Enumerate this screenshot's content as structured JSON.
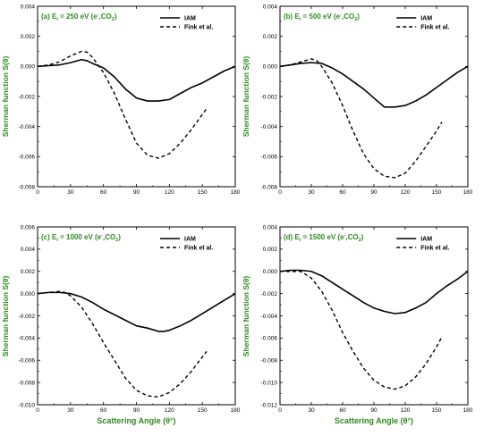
{
  "figure": {
    "ylabel": "Sherman function S(θ)",
    "xlabel": "Scattering Angle (θ°)"
  },
  "chart_data": [
    {
      "type": "line",
      "title": "(a) Ei = 250 eV (e⁻,CO₂)",
      "title_parts": {
        "pre": "(a) E",
        "sub": "i",
        "mid": " = 250 eV (e",
        "sup": "-",
        "post1": ",CO",
        "sub2": "2",
        "post2": ")"
      },
      "ylabel": "Sherman function S(θ)",
      "xlabel": "",
      "xlim": [
        0,
        180
      ],
      "ylim": [
        -0.008,
        0.004
      ],
      "xticks": [
        0,
        30,
        60,
        90,
        120,
        150,
        180
      ],
      "yticks": [
        "0.004",
        "0.002",
        "0.000",
        "-0.002",
        "-0.004",
        "-0.006",
        "-0.008"
      ],
      "legend": "top-right",
      "series": [
        {
          "name": "IAM",
          "dash": "solid",
          "points": [
            [
              0,
              0.0
            ],
            [
              10,
              5e-05
            ],
            [
              20,
              0.0001
            ],
            [
              30,
              0.00025
            ],
            [
              40,
              0.00045
            ],
            [
              45,
              0.00038
            ],
            [
              50,
              0.0002
            ],
            [
              60,
              -0.0001
            ],
            [
              70,
              -0.0007
            ],
            [
              80,
              -0.0015
            ],
            [
              90,
              -0.0021
            ],
            [
              100,
              -0.0023
            ],
            [
              110,
              -0.0023
            ],
            [
              120,
              -0.0022
            ],
            [
              130,
              -0.0018
            ],
            [
              140,
              -0.0014
            ],
            [
              150,
              -0.0011
            ],
            [
              160,
              -0.0007
            ],
            [
              170,
              -0.0003
            ],
            [
              180,
              0.0
            ]
          ]
        },
        {
          "name": "Fink et al.",
          "dash": "dashed",
          "points": [
            [
              0,
              0.0
            ],
            [
              10,
              0.0001
            ],
            [
              20,
              0.0003
            ],
            [
              30,
              0.0007
            ],
            [
              40,
              0.001
            ],
            [
              45,
              0.00095
            ],
            [
              50,
              0.0006
            ],
            [
              60,
              -0.0004
            ],
            [
              70,
              -0.0018
            ],
            [
              80,
              -0.0035
            ],
            [
              90,
              -0.0051
            ],
            [
              100,
              -0.0059
            ],
            [
              110,
              -0.0061
            ],
            [
              120,
              -0.0058
            ],
            [
              130,
              -0.0051
            ],
            [
              140,
              -0.0042
            ],
            [
              150,
              -0.0032
            ],
            [
              154,
              -0.0028
            ]
          ]
        }
      ]
    },
    {
      "type": "line",
      "title": "(b) Ei = 500 eV (e⁻,CO₂)",
      "title_parts": {
        "pre": "(b) E",
        "sub": "i",
        "mid": " = 500 eV (e",
        "sup": "-",
        "post1": ",CO",
        "sub2": "2",
        "post2": ")"
      },
      "ylabel": "Sherman function S(θ)",
      "xlabel": "",
      "xlim": [
        0,
        180
      ],
      "ylim": [
        -0.008,
        0.004
      ],
      "xticks": [
        0,
        30,
        60,
        90,
        120,
        150,
        180
      ],
      "yticks": [
        "0.004",
        "0.002",
        "0.000",
        "-0.002",
        "-0.004",
        "-0.006",
        "-0.008"
      ],
      "legend": "top-right",
      "series": [
        {
          "name": "IAM",
          "dash": "solid",
          "points": [
            [
              0,
              0.0
            ],
            [
              10,
              0.0001
            ],
            [
              20,
              0.0002
            ],
            [
              30,
              0.00025
            ],
            [
              40,
              0.0002
            ],
            [
              50,
              -0.0001
            ],
            [
              60,
              -0.0005
            ],
            [
              70,
              -0.001
            ],
            [
              80,
              -0.0015
            ],
            [
              90,
              -0.0021
            ],
            [
              100,
              -0.0027
            ],
            [
              110,
              -0.0027
            ],
            [
              120,
              -0.0026
            ],
            [
              130,
              -0.0023
            ],
            [
              140,
              -0.0019
            ],
            [
              150,
              -0.0014
            ],
            [
              160,
              -0.0009
            ],
            [
              170,
              -0.0004
            ],
            [
              180,
              0.0
            ]
          ]
        },
        {
          "name": "Fink et al.",
          "dash": "dashed",
          "points": [
            [
              0,
              0.0
            ],
            [
              10,
              0.0001
            ],
            [
              20,
              0.0003
            ],
            [
              30,
              0.0005
            ],
            [
              35,
              0.0004
            ],
            [
              40,
              0.0
            ],
            [
              50,
              -0.0011
            ],
            [
              60,
              -0.0026
            ],
            [
              70,
              -0.0043
            ],
            [
              80,
              -0.0058
            ],
            [
              90,
              -0.0068
            ],
            [
              100,
              -0.0073
            ],
            [
              110,
              -0.0074
            ],
            [
              120,
              -0.0071
            ],
            [
              130,
              -0.0063
            ],
            [
              140,
              -0.0053
            ],
            [
              150,
              -0.0043
            ],
            [
              155,
              -0.0037
            ]
          ]
        }
      ]
    },
    {
      "type": "line",
      "title": "(c) Ei = 1000 eV (e⁻,CO₂)",
      "title_parts": {
        "pre": "(c) E",
        "sub": "i",
        "mid": " = 1000 eV (e",
        "sup": "-",
        "post1": ",CO",
        "sub2": "2",
        "post2": ")"
      },
      "ylabel": "Sherman function S(θ)",
      "xlabel": "Scattering Angle (θ°)",
      "xlim": [
        0,
        180
      ],
      "ylim": [
        -0.01,
        0.006
      ],
      "xticks": [
        0,
        30,
        60,
        90,
        120,
        150,
        180
      ],
      "yticks": [
        "0.006",
        "0.004",
        "0.002",
        "0.000",
        "-0.002",
        "-0.004",
        "-0.006",
        "-0.008",
        "-0.010"
      ],
      "legend": "top-right",
      "series": [
        {
          "name": "IAM",
          "dash": "solid",
          "points": [
            [
              0,
              0.0
            ],
            [
              10,
              0.0001
            ],
            [
              20,
              0.0001
            ],
            [
              30,
              0.0
            ],
            [
              40,
              -0.0003
            ],
            [
              50,
              -0.0008
            ],
            [
              60,
              -0.0014
            ],
            [
              70,
              -0.0019
            ],
            [
              80,
              -0.0024
            ],
            [
              90,
              -0.0029
            ],
            [
              100,
              -0.0031
            ],
            [
              110,
              -0.0034
            ],
            [
              115,
              -0.0034
            ],
            [
              120,
              -0.0033
            ],
            [
              130,
              -0.0029
            ],
            [
              140,
              -0.0024
            ],
            [
              150,
              -0.0018
            ],
            [
              160,
              -0.0012
            ],
            [
              170,
              -0.0006
            ],
            [
              180,
              0.0
            ]
          ]
        },
        {
          "name": "Fink et al.",
          "dash": "dashed",
          "points": [
            [
              0,
              0.0
            ],
            [
              10,
              0.0001
            ],
            [
              20,
              0.0002
            ],
            [
              25,
              0.0001
            ],
            [
              30,
              -0.0002
            ],
            [
              40,
              -0.0012
            ],
            [
              50,
              -0.0027
            ],
            [
              60,
              -0.0044
            ],
            [
              70,
              -0.006
            ],
            [
              80,
              -0.0076
            ],
            [
              90,
              -0.0087
            ],
            [
              100,
              -0.0092
            ],
            [
              110,
              -0.0093
            ],
            [
              120,
              -0.0089
            ],
            [
              130,
              -0.0081
            ],
            [
              140,
              -0.007
            ],
            [
              150,
              -0.0057
            ],
            [
              154,
              -0.0052
            ]
          ]
        }
      ]
    },
    {
      "type": "line",
      "title": "(d) Ei = 1500 eV (e⁻,CO₂)",
      "title_parts": {
        "pre": "(d) E",
        "sub": "i",
        "mid": " = 1500 eV (e",
        "sup": "-",
        "post1": ",CO",
        "sub2": "2",
        "post2": ")"
      },
      "ylabel": "Sherman function S(θ)",
      "xlabel": "Scattering Angle (θ°)",
      "xlim": [
        0,
        180
      ],
      "ylim": [
        -0.012,
        0.004
      ],
      "xticks": [
        0,
        30,
        60,
        90,
        120,
        150,
        180
      ],
      "yticks": [
        "0.004",
        "0.002",
        "0.000",
        "-0.002",
        "-0.004",
        "-0.006",
        "-0.008",
        "-0.010",
        "-0.012"
      ],
      "legend": "top-right",
      "series": [
        {
          "name": "IAM",
          "dash": "solid",
          "points": [
            [
              0,
              0.0
            ],
            [
              10,
              0.0001
            ],
            [
              20,
              0.0001
            ],
            [
              30,
              0.0
            ],
            [
              40,
              -0.0004
            ],
            [
              50,
              -0.001
            ],
            [
              60,
              -0.0016
            ],
            [
              70,
              -0.0022
            ],
            [
              80,
              -0.0028
            ],
            [
              90,
              -0.0033
            ],
            [
              100,
              -0.0036
            ],
            [
              110,
              -0.0038
            ],
            [
              120,
              -0.0037
            ],
            [
              130,
              -0.0033
            ],
            [
              140,
              -0.0028
            ],
            [
              150,
              -0.002
            ],
            [
              160,
              -0.0013
            ],
            [
              170,
              -0.0007
            ],
            [
              180,
              0.0
            ]
          ]
        },
        {
          "name": "Fink et al.",
          "dash": "dashed",
          "points": [
            [
              0,
              0.0
            ],
            [
              10,
              0.0
            ],
            [
              20,
              0.0
            ],
            [
              30,
              -0.0006
            ],
            [
              40,
              -0.0018
            ],
            [
              50,
              -0.0035
            ],
            [
              60,
              -0.0055
            ],
            [
              70,
              -0.0072
            ],
            [
              80,
              -0.0087
            ],
            [
              90,
              -0.0098
            ],
            [
              100,
              -0.0104
            ],
            [
              110,
              -0.0106
            ],
            [
              120,
              -0.0103
            ],
            [
              130,
              -0.0095
            ],
            [
              140,
              -0.0083
            ],
            [
              150,
              -0.0068
            ],
            [
              155,
              -0.0059
            ]
          ]
        }
      ]
    }
  ]
}
